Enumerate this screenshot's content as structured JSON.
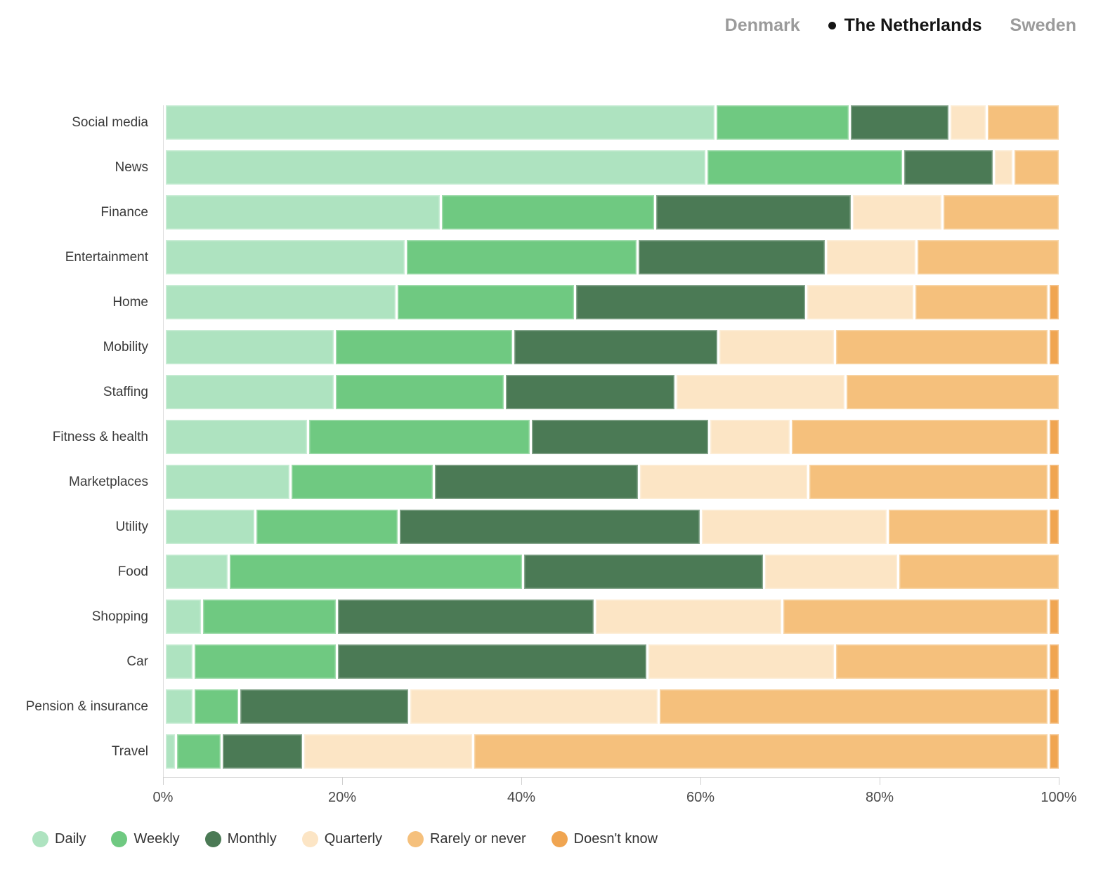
{
  "header": {
    "tabs": [
      {
        "label": "Denmark",
        "active": false
      },
      {
        "label": "The Netherlands",
        "active": true
      },
      {
        "label": "Sweden",
        "active": false
      }
    ]
  },
  "chart_data": {
    "type": "bar",
    "orientation": "horizontal",
    "stacked": true,
    "unit": "percent",
    "xlim": [
      0,
      100
    ],
    "x_ticks": [
      "0%",
      "20%",
      "40%",
      "60%",
      "80%",
      "100%"
    ],
    "grid": false,
    "legend_position": "bottom",
    "categories": [
      "Social media",
      "News",
      "Finance",
      "Entertainment",
      "Home",
      "Mobility",
      "Staffing",
      "Fitness & health",
      "Marketplaces",
      "Utility",
      "Food",
      "Shopping",
      "Car",
      "Pension & insurance",
      "Travel"
    ],
    "series": [
      {
        "name": "Daily",
        "color": "#aee3c0",
        "values": [
          62,
          61,
          31,
          27,
          26,
          19,
          19,
          16,
          14,
          10,
          7,
          4,
          3,
          3,
          1
        ]
      },
      {
        "name": "Weekly",
        "color": "#6fc981",
        "values": [
          15,
          22,
          24,
          26,
          20,
          20,
          19,
          25,
          16,
          16,
          33,
          15,
          16,
          5,
          5
        ]
      },
      {
        "name": "Monthly",
        "color": "#4b7a55",
        "values": [
          11,
          10,
          22,
          21,
          26,
          23,
          19,
          20,
          23,
          34,
          27,
          29,
          35,
          19,
          9
        ]
      },
      {
        "name": "Quarterly",
        "color": "#fce5c5",
        "values": [
          4,
          2,
          10,
          10,
          12,
          13,
          19,
          9,
          19,
          21,
          15,
          21,
          21,
          28,
          19
        ]
      },
      {
        "name": "Rarely or never",
        "color": "#f5c07c",
        "values": [
          8,
          5,
          13,
          16,
          15,
          24,
          24,
          29,
          27,
          18,
          18,
          30,
          24,
          44,
          65
        ]
      },
      {
        "name": "Doesn't know",
        "color": "#f0a551",
        "values": [
          0,
          0,
          0,
          0,
          1,
          1,
          0,
          1,
          1,
          1,
          0,
          1,
          1,
          1,
          1
        ]
      }
    ]
  }
}
